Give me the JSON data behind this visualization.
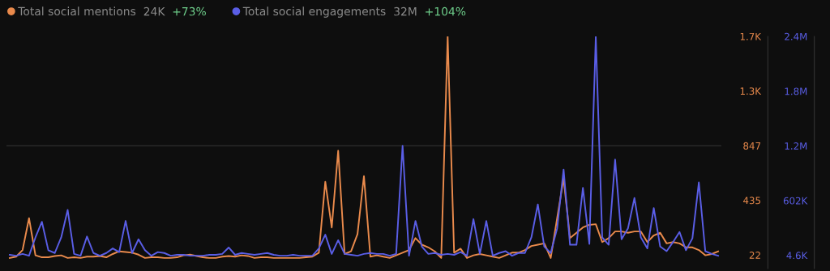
{
  "chart_data": {
    "type": "line",
    "categories": [
      null,
      null,
      null,
      null,
      null,
      null,
      null,
      null,
      null,
      null,
      null,
      null,
      null,
      null,
      null,
      null,
      null,
      null,
      null,
      null,
      null,
      null,
      null,
      null,
      null,
      null,
      null,
      null,
      null,
      null,
      null,
      null,
      null,
      null,
      null,
      null,
      null,
      null,
      null,
      null,
      null,
      null,
      null,
      null,
      null,
      null,
      null,
      null,
      null,
      null,
      null,
      null,
      null,
      null,
      null,
      null,
      null,
      null,
      null,
      null,
      null,
      null,
      null,
      null,
      null,
      null,
      null,
      null,
      null,
      null,
      null,
      null,
      null,
      null,
      null,
      null,
      null,
      null,
      null,
      null,
      null,
      null,
      null,
      null,
      null,
      null,
      null,
      null,
      null,
      null,
      null,
      null,
      null,
      null,
      null,
      null,
      null,
      null,
      null,
      null,
      null,
      null,
      null,
      null,
      null,
      null,
      null,
      null,
      null,
      null,
      null
    ],
    "series": [
      {
        "name": "Total social mentions",
        "color": "#e98a4c",
        "values": [
          0,
          10,
          60,
          300,
          20,
          5,
          5,
          15,
          20,
          0,
          5,
          0,
          10,
          10,
          15,
          5,
          30,
          50,
          45,
          40,
          25,
          0,
          5,
          5,
          0,
          0,
          5,
          20,
          25,
          15,
          5,
          0,
          0,
          10,
          15,
          10,
          20,
          15,
          0,
          5,
          5,
          0,
          0,
          0,
          0,
          0,
          5,
          10,
          40,
          575,
          230,
          810,
          30,
          50,
          180,
          618,
          10,
          20,
          10,
          0,
          20,
          40,
          60,
          150,
          100,
          80,
          50,
          0,
          1670,
          40,
          70,
          0,
          20,
          30,
          20,
          10,
          0,
          20,
          40,
          40,
          60,
          90,
          100,
          110,
          0,
          300,
          600,
          150,
          190,
          230,
          250,
          255,
          120,
          150,
          200,
          200,
          190,
          200,
          200,
          120,
          170,
          190,
          110,
          120,
          110,
          80,
          80,
          60,
          20,
          30,
          50
        ]
      },
      {
        "name": "Total social engagements",
        "color": "#5a5ee6",
        "axis": "y2",
        "values": [
          10000,
          0,
          20000,
          0,
          200000,
          370000,
          60000,
          30000,
          200000,
          500000,
          20000,
          0,
          210000,
          30000,
          0,
          30000,
          80000,
          40000,
          380000,
          30000,
          180000,
          60000,
          0,
          40000,
          30000,
          0,
          10000,
          10000,
          0,
          0,
          0,
          10000,
          10000,
          20000,
          90000,
          10000,
          30000,
          20000,
          10000,
          20000,
          30000,
          10000,
          0,
          0,
          10000,
          0,
          0,
          0,
          80000,
          230000,
          20000,
          170000,
          20000,
          10000,
          0,
          20000,
          30000,
          20000,
          20000,
          0,
          20000,
          1200000,
          0,
          380000,
          100000,
          20000,
          30000,
          10000,
          20000,
          10000,
          40000,
          0,
          400000,
          20000,
          380000,
          0,
          30000,
          50000,
          0,
          30000,
          30000,
          200000,
          560000,
          100000,
          30000,
          300000,
          940000,
          120000,
          120000,
          740000,
          130000,
          2390000,
          200000,
          120000,
          1050000,
          180000,
          300000,
          630000,
          200000,
          80000,
          520000,
          100000,
          50000,
          150000,
          260000,
          60000,
          190000,
          800000,
          50000,
          20000,
          0
        ]
      }
    ],
    "annotations": [
      "24K",
      "+73%",
      "32M",
      "+104%"
    ],
    "ylim": [
      -80,
      1672
    ],
    "yticks": [
      22,
      435,
      847,
      {
        "value": 1260,
        "label": "1.3K"
      },
      {
        "value": 1672,
        "label": "1.7K"
      }
    ],
    "y2lim": [
      -140000,
      2394200
    ],
    "y2ticks": [
      {
        "value": 4600,
        "label": "4.6K"
      },
      {
        "value": 602000,
        "label": "602K"
      },
      {
        "value": 1199400,
        "label": "1.2M"
      },
      {
        "value": 1796800,
        "label": "1.8M"
      },
      {
        "value": 2394200,
        "label": "2.4M"
      }
    ],
    "tick_labels": "y",
    "ref_lines": [
      {
        "axis": "y",
        "value": 847,
        "color": "#2e2e2e"
      }
    ],
    "legend": "top left",
    "grid": false,
    "marker": "none",
    "line_style": "solid"
  }
}
